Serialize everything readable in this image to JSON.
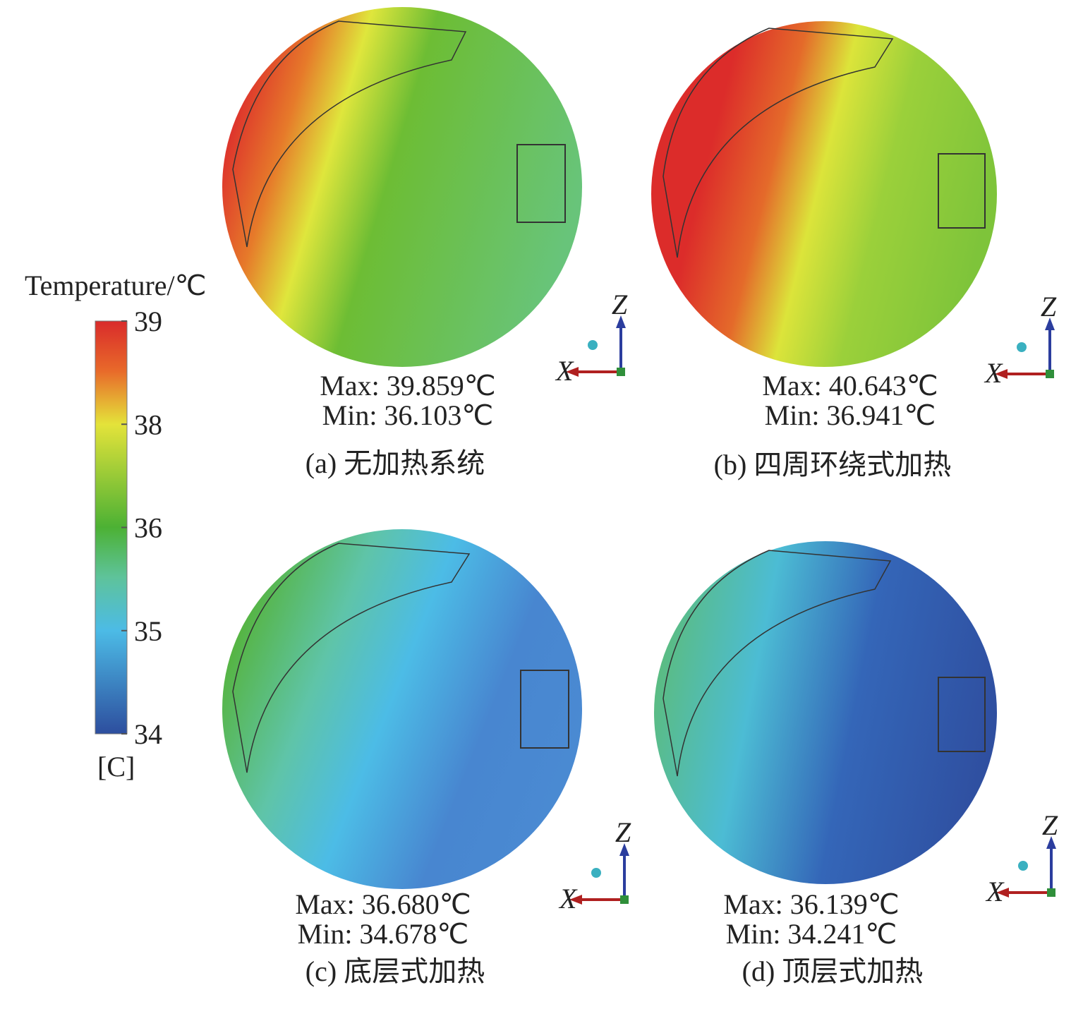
{
  "colorbar": {
    "title": "Temperature/℃",
    "ticks": [
      "39",
      "38",
      "36",
      "35",
      "34"
    ],
    "unit": "[C]"
  },
  "axes": {
    "z": "Z",
    "x": "X"
  },
  "panels": [
    {
      "max": "Max: 39.859℃",
      "min": "Min: 36.103℃",
      "caption": "(a) 无加热系统"
    },
    {
      "max": "Max: 40.643℃",
      "min": "Min: 36.941℃",
      "caption": "(b) 四周环绕式加热"
    },
    {
      "max": "Max: 36.680℃",
      "min": "Min: 34.678℃",
      "caption": "(c) 底层式加热"
    },
    {
      "max": "Max: 36.139℃",
      "min": "Min: 34.241℃",
      "caption": "(d) 顶层式加热"
    }
  ]
}
